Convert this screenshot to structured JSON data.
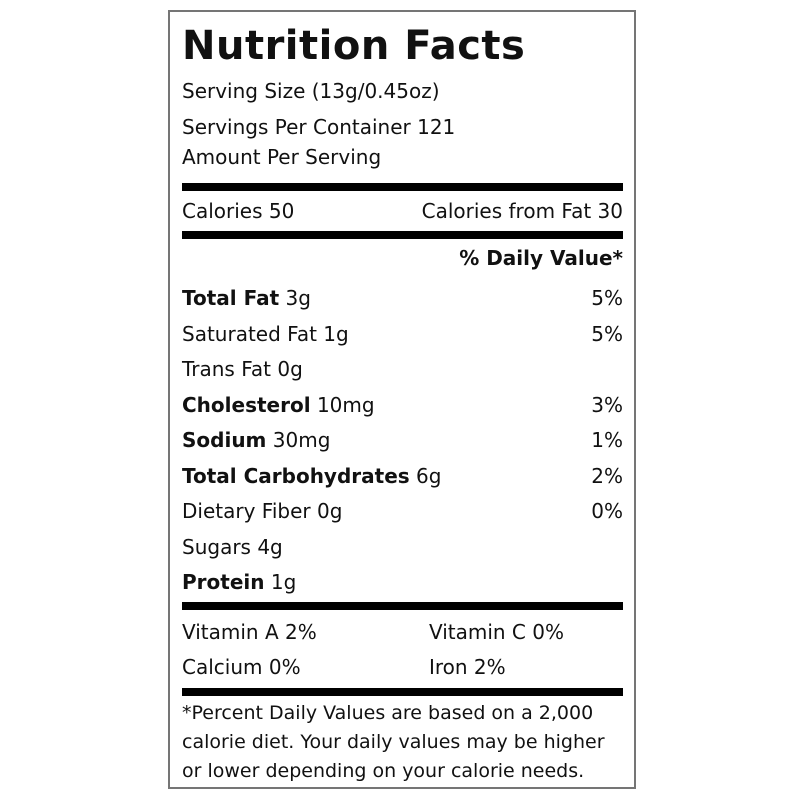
{
  "label": {
    "title": "Nutrition Facts",
    "serving_size": "Serving Size (13g/0.45oz)",
    "servings_per_container": "Servings Per Container 121",
    "amount_per_serving": "Amount Per Serving",
    "calories": {
      "left": "Calories 50",
      "right": "Calories from Fat 30"
    },
    "daily_value_header": "% Daily Value*",
    "nutrients": [
      {
        "name": "Total Fat",
        "amount": "3g",
        "dv": "5%"
      },
      {
        "name": "Saturated Fat",
        "amount": "1g",
        "dv": "5%"
      },
      {
        "name": "Trans Fat",
        "amount": "0g",
        "dv": ""
      },
      {
        "name": "Cholesterol",
        "amount": "10mg",
        "dv": "3%"
      },
      {
        "name": "Sodium",
        "amount": "30mg",
        "dv": "1%"
      },
      {
        "name": "Total Carbohydrates",
        "amount": "6g",
        "dv": "2%"
      },
      {
        "name": "Dietary Fiber",
        "amount": "0g",
        "dv": "0%"
      },
      {
        "name": "Sugars",
        "amount": "4g",
        "dv": ""
      },
      {
        "name": "Protein",
        "amount": "1g",
        "dv": ""
      }
    ],
    "vitamins": [
      "Vitamin A 2%",
      "Vitamin C 0%",
      "Calcium 0%",
      "Iron 2%"
    ],
    "footnote": "*Percent Daily Values are based on a 2,000 calorie diet. Your daily values may be higher or lower depending on your calorie needs.",
    "colors": {
      "text": "#111111",
      "divider_bar": "#000000",
      "border": "#757575",
      "background": "#ffffff"
    }
  }
}
